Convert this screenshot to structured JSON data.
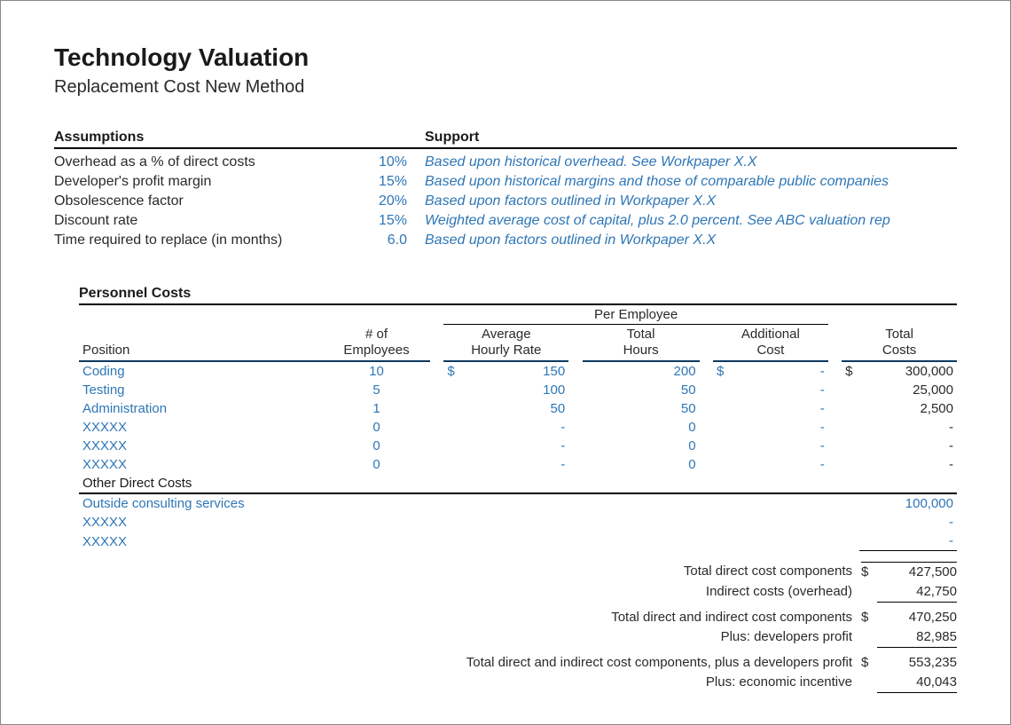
{
  "title": "Technology Valuation",
  "subtitle": "Replacement Cost New Method",
  "assumptions_header": "Assumptions",
  "support_header": "Support",
  "assumptions": [
    {
      "label": "Overhead as a % of direct costs",
      "value": "10%",
      "support": "Based upon historical overhead.  See Workpaper X.X"
    },
    {
      "label": "Developer's profit margin",
      "value": "15%",
      "support": "Based upon historical margins and those of comparable public companies"
    },
    {
      "label": "Obsolescence factor",
      "value": "20%",
      "support": "Based upon factors outlined in Workpaper X.X"
    },
    {
      "label": "Discount rate",
      "value": "15%",
      "support": "Weighted average cost of capital, plus 2.0 percent.  See ABC valuation rep"
    },
    {
      "label": "Time required to replace (in months)",
      "value": "6.0",
      "support": "Based upon factors outlined in Workpaper X.X"
    }
  ],
  "personnel_header": "Personnel Costs",
  "per_employee_header": "Per Employee",
  "col": {
    "position": "Position",
    "num_emp_l1": "# of",
    "num_emp_l2": "Employees",
    "rate_l1": "Average",
    "rate_l2": "Hourly Rate",
    "hours_l1": "Total",
    "hours_l2": "Hours",
    "add_l1": "Additional",
    "add_l2": "Cost",
    "total_l1": "Total",
    "total_l2": "Costs"
  },
  "personnel_rows": [
    {
      "pos": "Coding",
      "emp": "10",
      "rate_sym": "$",
      "rate": "150",
      "hours": "200",
      "add_sym": "$",
      "add": "-",
      "tot_sym": "$",
      "tot": "300,000"
    },
    {
      "pos": "Testing",
      "emp": "5",
      "rate_sym": "",
      "rate": "100",
      "hours": "50",
      "add_sym": "",
      "add": "-",
      "tot_sym": "",
      "tot": "25,000"
    },
    {
      "pos": "Administration",
      "emp": "1",
      "rate_sym": "",
      "rate": "50",
      "hours": "50",
      "add_sym": "",
      "add": "-",
      "tot_sym": "",
      "tot": "2,500"
    },
    {
      "pos": "XXXXX",
      "emp": "0",
      "rate_sym": "",
      "rate": "-",
      "hours": "0",
      "add_sym": "",
      "add": "-",
      "tot_sym": "",
      "tot": "-"
    },
    {
      "pos": "XXXXX",
      "emp": "0",
      "rate_sym": "",
      "rate": "-",
      "hours": "0",
      "add_sym": "",
      "add": "-",
      "tot_sym": "",
      "tot": "-"
    },
    {
      "pos": "XXXXX",
      "emp": "0",
      "rate_sym": "",
      "rate": "-",
      "hours": "0",
      "add_sym": "",
      "add": "-",
      "tot_sym": "",
      "tot": "-"
    }
  ],
  "other_header": "Other Direct Costs",
  "other_rows": [
    {
      "label": "Outside consulting services",
      "val": "100,000"
    },
    {
      "label": "XXXXX",
      "val": "-"
    },
    {
      "label": "XXXXX",
      "val": "-"
    }
  ],
  "totals": [
    {
      "label": "Total direct cost components",
      "sym": "$",
      "val": "427,500",
      "top": true
    },
    {
      "label": "Indirect costs (overhead)",
      "sym": "",
      "val": "42,750",
      "bot": true
    },
    {
      "label": "Total direct and indirect cost components",
      "sym": "$",
      "val": "470,250",
      "gap": true
    },
    {
      "label": "Plus: developers profit",
      "sym": "",
      "val": "82,985",
      "bot": true
    },
    {
      "label": "Total direct and indirect cost components, plus a developers profit",
      "sym": "$",
      "val": "553,235",
      "gap": true
    },
    {
      "label": "Plus: economic incentive",
      "sym": "",
      "val": "40,043",
      "bot": true
    }
  ],
  "colors": {
    "link": "#2e76b6",
    "headline_border": "#0d3a5f"
  }
}
